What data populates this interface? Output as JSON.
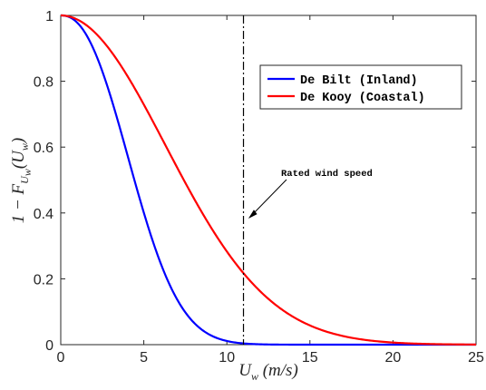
{
  "chart_data": {
    "type": "line",
    "title": "",
    "xlabel": {
      "main": "U",
      "sub": "w",
      "rest": " (m/s)"
    },
    "ylabel": {
      "prefix": "1 − F",
      "sub_main": "U",
      "sub_sub": "w",
      "suffix_main": "(U",
      "suffix_sub": "w",
      "suffix_close": ")"
    },
    "xlim": [
      0,
      25
    ],
    "ylim": [
      0,
      1
    ],
    "xticks": [
      0,
      5,
      10,
      15,
      20,
      25
    ],
    "xtick_labels": [
      "0",
      "5",
      "10",
      "15",
      "20",
      "25"
    ],
    "yticks": [
      0,
      0.2,
      0.4,
      0.6,
      0.8,
      1
    ],
    "ytick_labels": [
      "0",
      "0.2",
      "0.4",
      "0.6",
      "0.8",
      "1"
    ],
    "grid": false,
    "legend_position": "top-right",
    "series": [
      {
        "name": "De Bilt (Inland)",
        "color": "#0000ff",
        "weibull_scale": 5.2,
        "weibull_shape": 2.3
      },
      {
        "name": "De Kooy (Coastal)",
        "color": "#ff0000",
        "weibull_scale": 8.9,
        "weibull_shape": 2.0
      }
    ],
    "vertical_line": {
      "x": 11,
      "style": "dash-dot",
      "color": "#000000"
    },
    "annotation": {
      "text": "Rated wind speed",
      "arrow_target": [
        11.3,
        0.38
      ]
    }
  }
}
